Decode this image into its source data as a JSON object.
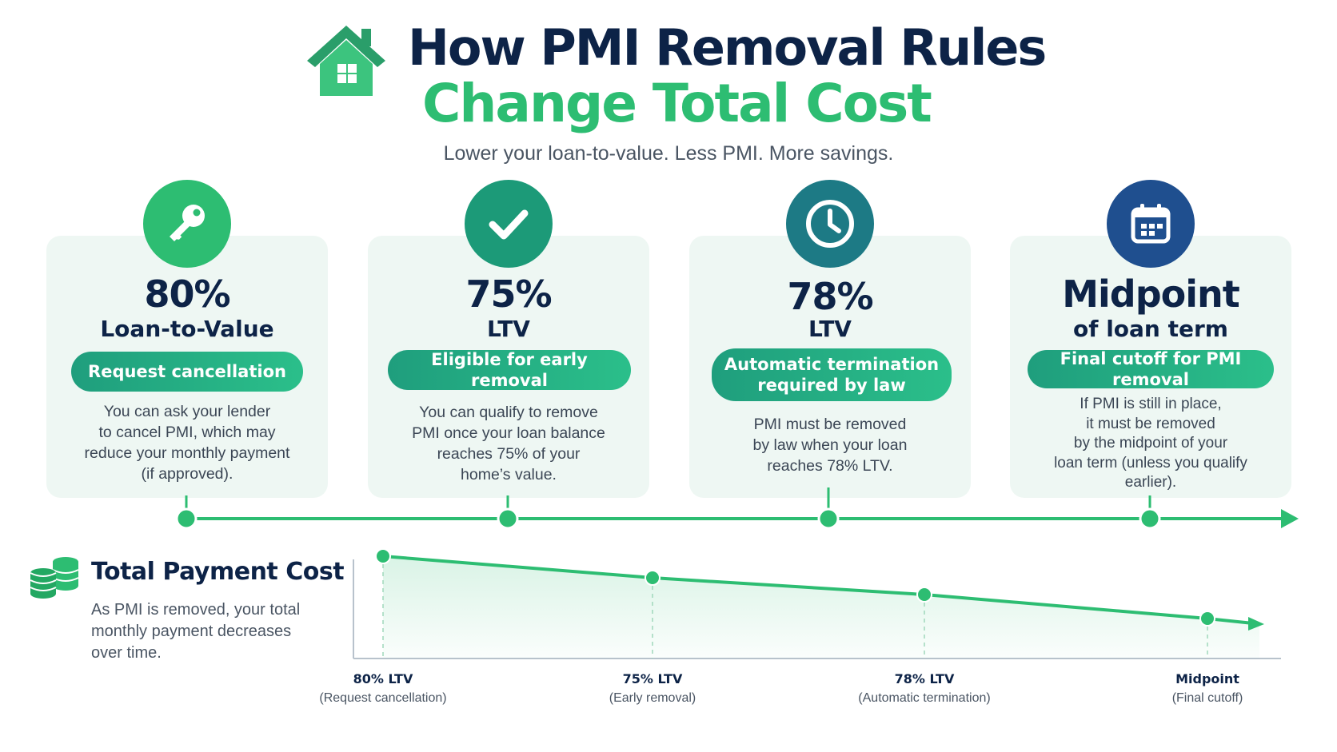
{
  "header": {
    "logo_icon": "house-icon",
    "title_line1": "How PMI Removal Rules",
    "title_line2": "Change Total Cost",
    "subtitle": "Lower your loan-to-value. Less PMI. More savings."
  },
  "colors": {
    "navy": "#0d2347",
    "green": "#2dbd72",
    "teal": "#1f9e7d",
    "dark_teal": "#1d7a80",
    "blue": "#1f4f8f",
    "card_bg": "#eef7f3"
  },
  "cards": [
    {
      "icon": "key-icon",
      "value": "80%",
      "unit": "Loan-to-Value",
      "pill": "Request cancellation",
      "description": "You can ask your lender\nto cancel PMI, which may\nreduce your monthly payment\n(if approved)."
    },
    {
      "icon": "checkmark-icon",
      "value": "75%",
      "unit": "LTV",
      "pill": "Eligible for early removal",
      "description": "You can qualify to remove\nPMI once your loan balance\nreaches 75% of your\nhome’s value."
    },
    {
      "icon": "clock-icon",
      "value": "78%",
      "unit": "LTV",
      "pill": "Automatic termination\nrequired by law",
      "description": "PMI must be removed\nby law when your loan\nreaches 78% LTV."
    },
    {
      "icon": "calendar-icon",
      "value": "Midpoint",
      "unit": "of loan term",
      "pill": "Final cutoff for PMI removal",
      "description": "If PMI is still in place,\nit must be removed\nby the midpoint of your\nloan term (unless you qualify\nearlier)."
    }
  ],
  "cost_section": {
    "icon": "coins-icon",
    "title": "Total Payment Cost",
    "description": "As PMI is removed, your total\nmonthly payment decreases\nover time."
  },
  "chart_data": {
    "type": "line",
    "title": "",
    "xlabel": "",
    "ylabel": "",
    "categories": [
      "80% LTV",
      "75% LTV",
      "78% LTV",
      "Midpoint"
    ],
    "category_notes": [
      "(Request cancellation)",
      "(Early removal)",
      "(Automatic termination)",
      "(Final cutoff)"
    ],
    "series": [
      {
        "values": [
          1.0,
          0.73,
          0.52,
          0.22
        ]
      }
    ],
    "y_axis_labels": false,
    "grid": false,
    "line_color": "#2dbd72",
    "trend": "decreasing"
  }
}
